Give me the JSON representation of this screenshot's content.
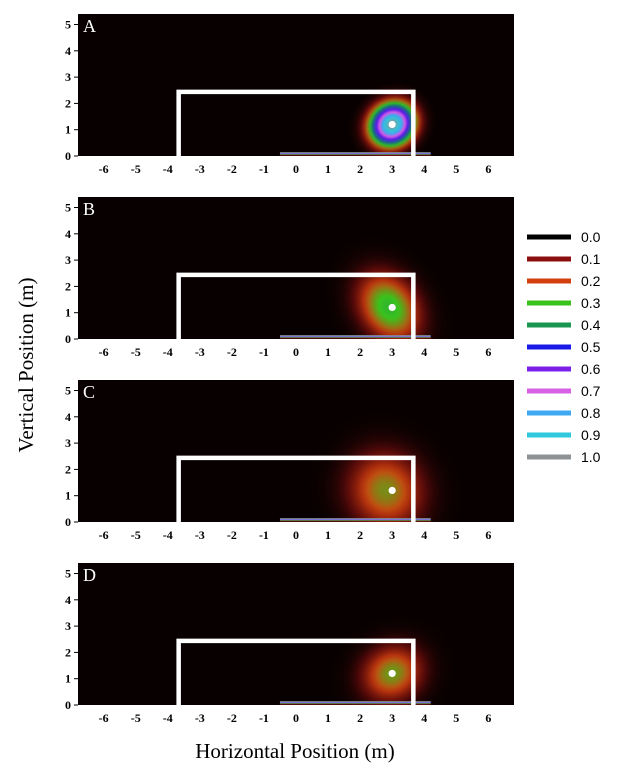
{
  "chart_data": {
    "type": "heatmap",
    "xlabel": "Horizontal Position (m)",
    "ylabel": "Vertical Position (m)",
    "xlim": [
      -6.8,
      6.8
    ],
    "ylim": [
      0,
      5.4
    ],
    "x_ticks": [
      "-6",
      "-5",
      "-4",
      "-3",
      "-2",
      "-1",
      "0",
      "1",
      "2",
      "3",
      "4",
      "5",
      "6"
    ],
    "y_ticks": [
      "0",
      "1",
      "2",
      "3",
      "4",
      "5"
    ],
    "goal_frame": {
      "x_left": -3.66,
      "x_right": 3.66,
      "height": 2.44
    },
    "background_color": "#080000",
    "legend": {
      "placement": "right",
      "entries": [
        {
          "label": "0.0",
          "color": "#000000"
        },
        {
          "label": "0.1",
          "color": "#8b0f0f"
        },
        {
          "label": "0.2",
          "color": "#d3400f"
        },
        {
          "label": "0.3",
          "color": "#3ac21c"
        },
        {
          "label": "0.4",
          "color": "#1a9650"
        },
        {
          "label": "0.5",
          "color": "#1a1ae6"
        },
        {
          "label": "0.6",
          "color": "#7a20e8"
        },
        {
          "label": "0.7",
          "color": "#d760e6"
        },
        {
          "label": "0.8",
          "color": "#3ea8f0"
        },
        {
          "label": "0.9",
          "color": "#30c8dc"
        },
        {
          "label": "1.0",
          "color": "#8c9296"
        }
      ]
    },
    "panels": [
      {
        "letter": "A",
        "aim": {
          "x": 3.0,
          "y": 1.2
        },
        "peak": 1.0,
        "sigma_x": 0.55,
        "sigma_y": 0.6,
        "rho": 0.55,
        "shift_x": 0.0
      },
      {
        "letter": "B",
        "aim": {
          "x": 3.0,
          "y": 1.2
        },
        "peak": 0.33,
        "sigma_x": 0.75,
        "sigma_y": 1.2,
        "rho": 0.55,
        "shift_x": -0.1
      },
      {
        "letter": "C",
        "aim": {
          "x": 3.0,
          "y": 1.2
        },
        "peak": 0.26,
        "sigma_x": 1.0,
        "sigma_y": 1.3,
        "rho": 0.55,
        "shift_x": -0.2
      },
      {
        "letter": "D",
        "aim": {
          "x": 3.0,
          "y": 1.2
        },
        "peak": 0.27,
        "sigma_x": 0.85,
        "sigma_y": 0.9,
        "rho": 0.4,
        "shift_x": 0.0
      }
    ]
  }
}
